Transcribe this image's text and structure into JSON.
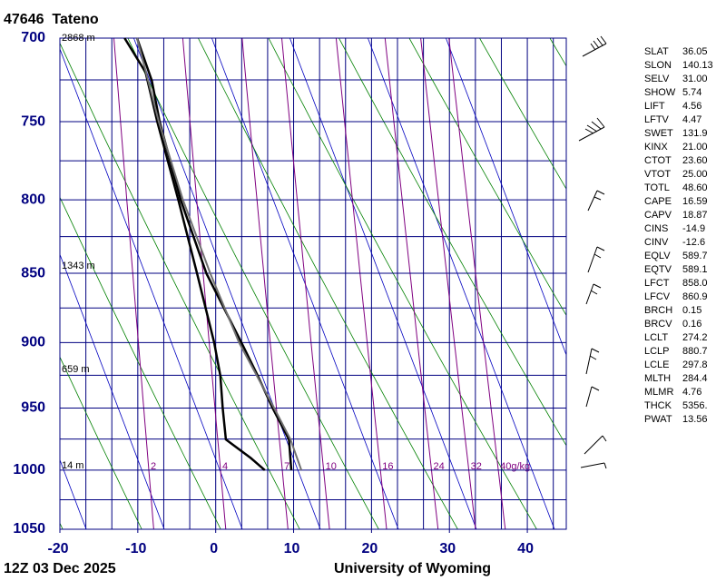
{
  "chart_data": {
    "type": "skewt",
    "title": "47646  Tateno",
    "footer_left": "12Z 03 Dec 2025",
    "footer_right": "University of Wyoming",
    "pressure_lim": [
      700,
      1050
    ],
    "pressure_ticks": [
      700,
      750,
      800,
      850,
      900,
      950,
      1000,
      1050
    ],
    "temperature_lim": [
      -20,
      45
    ],
    "temperature_ticks": [
      -20,
      -10,
      0,
      10,
      20,
      30,
      40
    ],
    "height_labels": [
      "2868 m",
      "1343 m",
      "659 m",
      "14 m"
    ],
    "mixing_ratio_labels": [
      "2",
      "4",
      "7",
      "10",
      "16",
      "24",
      "32",
      "40g/kg"
    ],
    "series": [
      {
        "name": "temperature",
        "color": "#000000",
        "pressure": [
          1000,
          975,
          950,
          925,
          900,
          850,
          800,
          750,
          725,
          700
        ],
        "values": [
          9.7,
          9.4,
          7.3,
          5.4,
          3.3,
          -1.2,
          -4.5,
          -7.2,
          -8.2,
          -10.1
        ]
      },
      {
        "name": "dewpoint",
        "color": "#000000",
        "pressure": [
          1000,
          990,
          975,
          950,
          925,
          900,
          850,
          800,
          750,
          720,
          700
        ],
        "values": [
          6.3,
          4.5,
          1.3,
          0.9,
          0.6,
          -0.2,
          -2.4,
          -4.8,
          -7.5,
          -9.0,
          -11.7
        ]
      },
      {
        "name": "parcel",
        "color": "#707070",
        "pressure": [
          1000,
          975,
          950,
          900,
          850,
          800,
          750,
          700
        ],
        "values": [
          11.0,
          9.6,
          7.5,
          3.0,
          -0.7,
          -4.2,
          -7.3,
          -10.1
        ]
      }
    ],
    "indices": [
      [
        "SLAT",
        "36.05"
      ],
      [
        "SLON",
        "140.13"
      ],
      [
        "SELV",
        "31.00"
      ],
      [
        "SHOW",
        "5.74"
      ],
      [
        "LIFT",
        "4.56"
      ],
      [
        "LFTV",
        "4.47"
      ],
      [
        "SWET",
        "131.9"
      ],
      [
        "KINX",
        "21.00"
      ],
      [
        "CTOT",
        "23.60"
      ],
      [
        "VTOT",
        "25.00"
      ],
      [
        "TOTL",
        "48.60"
      ],
      [
        "CAPE",
        "16.59"
      ],
      [
        "CAPV",
        "18.87"
      ],
      [
        "CINS",
        "-14.9"
      ],
      [
        "CINV",
        "-12.6"
      ],
      [
        "EQLV",
        "589.7"
      ],
      [
        "EQTV",
        "589.1"
      ],
      [
        "LFCT",
        "858.0"
      ],
      [
        "LFCV",
        "860.9"
      ],
      [
        "BRCH",
        "0.15"
      ],
      [
        "BRCV",
        "0.16"
      ],
      [
        "LCLT",
        "274.2"
      ],
      [
        "LCLP",
        "880.7"
      ],
      [
        "LCLE",
        "297.8"
      ],
      [
        "MLTH",
        "284.4"
      ],
      [
        "MLMR",
        "4.76"
      ],
      [
        "THCK",
        "5356."
      ],
      [
        "PWAT",
        "13.56"
      ]
    ]
  }
}
